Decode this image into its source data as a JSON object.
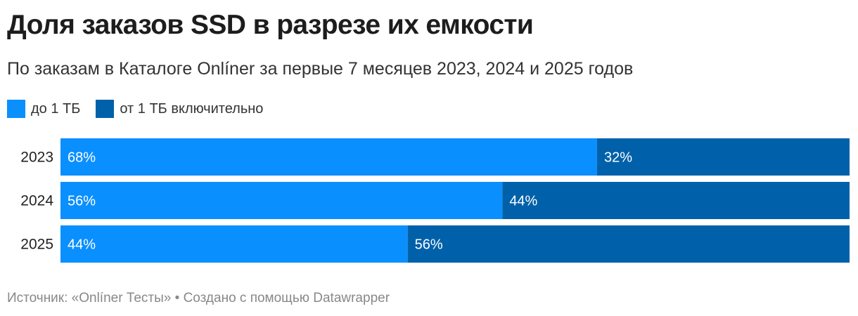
{
  "chart_data": {
    "type": "bar",
    "orientation": "horizontal",
    "stacked": true,
    "title": "Доля заказов SSD в разрезе их емкости",
    "subtitle": "По заказам в Каталоге Onlíner за первые 7 месяцев 2023, 2024 и 2025 годов",
    "categories": [
      "2023",
      "2024",
      "2025"
    ],
    "series": [
      {
        "name": "до 1 ТБ",
        "values": [
          68,
          56,
          44
        ],
        "labels": [
          "68%",
          "56%",
          "44%"
        ],
        "color": "#0a8fff"
      },
      {
        "name": "от 1 ТБ включительно",
        "values": [
          32,
          44,
          56
        ],
        "labels": [
          "32%",
          "44%",
          "56%"
        ],
        "color": "#0061aa"
      }
    ],
    "xlim": [
      0,
      100
    ],
    "unit": "%",
    "grid": false,
    "legend_position": "top-left"
  },
  "footer": {
    "text": "Источник: «Onlíner Тесты» • Создано с помощью Datawrapper"
  }
}
